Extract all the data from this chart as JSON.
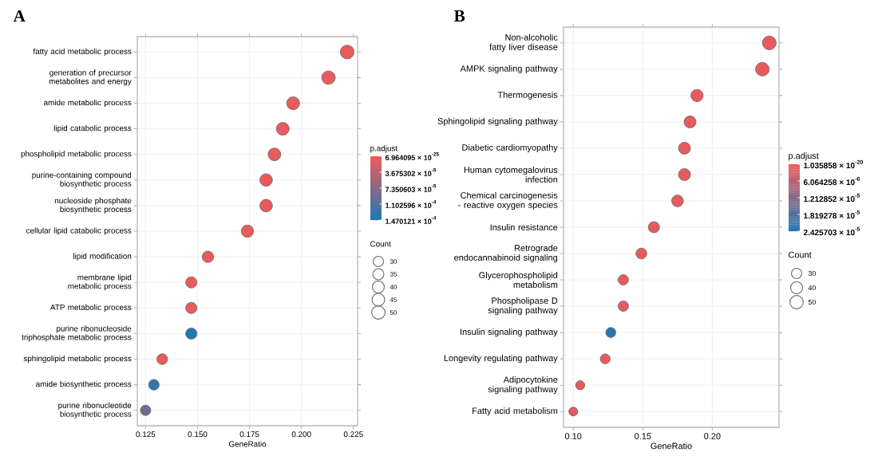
{
  "chart_data": [
    {
      "type": "bubble",
      "title": "A",
      "xlabel": "GeneRatio",
      "orientation": "horizontal",
      "grid": true,
      "categories": [
        "fatty acid metabolic process",
        "generation of precursor metabolites and energy",
        "amide metabolic process",
        "lipid catabolic process",
        "phospholipid metabolic process",
        "purine-containing compound biosynthetic process",
        "nucleoside phosphate biosynthetic process",
        "cellular lipid catabolic process",
        "lipid modification",
        "membrane lipid metabolic process",
        "ATP metabolic process",
        "purine ribonucleoside triphosphate metabolic process",
        "sphingolipid metabolic process",
        "amide biosynthetic process",
        "purine ribonucleotide biosynthetic process"
      ],
      "values": [
        0.222,
        0.213,
        0.196,
        0.191,
        0.187,
        0.183,
        0.183,
        0.174,
        0.155,
        0.147,
        0.147,
        0.147,
        0.133,
        0.129,
        0.125
      ],
      "sizes": [
        53,
        51,
        47,
        46,
        45,
        44,
        44,
        42,
        37,
        35,
        35,
        35,
        32,
        31,
        30
      ],
      "size_legend": [
        30,
        35,
        40,
        45,
        50
      ],
      "cvalues": [
        5e-06,
        5e-06,
        5e-06,
        5e-06,
        5e-06,
        5e-06,
        5e-06,
        5e-06,
        5e-06,
        5e-06,
        5e-06,
        0.000145,
        5e-06,
        0.000135,
        9e-05
      ],
      "clabel": "p.adjust",
      "legend_title": "Count",
      "clim": [
        6.964095e-25,
        0.0001470121
      ],
      "cticks": [
        {
          "value": 6.964095e-25,
          "label": "6.964095 × 10$^{-25}$"
        },
        {
          "value": 3.675302e-05,
          "label": "3.675302 × 10$^{-5}$"
        },
        {
          "value": 7.350603e-05,
          "label": "7.350603 × 10$^{-5}$"
        },
        {
          "value": 0.0001102596,
          "label": "1.102596 × 10$^{-4}$"
        },
        {
          "value": 0.0001470121,
          "label": "1.470121 × 10$^{-4}$"
        }
      ],
      "xlim": [
        0.121,
        0.227
      ],
      "xticks": [
        0.125,
        {
          "value": 0.15,
          "label": "0.150"
        },
        0.175,
        {
          "value": 0.2,
          "label": "0.200"
        },
        0.225
      ]
    },
    {
      "type": "bubble",
      "title": "B",
      "xlabel": "GeneRatio",
      "orientation": "horizontal",
      "grid": true,
      "categories": [
        "Non-alcoholic fatty liver disease",
        "AMPK signaling pathway",
        "Thermogenesis",
        "Sphingolipid signaling pathway",
        "Diabetic cardiomyopathy",
        "Human cytomegalovirus infection",
        "Chemical carcinogenesis - reactive oxygen species",
        "Insulin resistance",
        "Retrograde endocannabinoid signaling",
        "Glycerophospholipid metabolism",
        "Phospholipase D signaling pathway",
        "Insulin signaling pathway",
        "Longevity regulating pathway",
        "Adipocytokine signaling pathway",
        "Fatty acid metabolism"
      ],
      "values": [
        0.241,
        0.236,
        0.189,
        0.184,
        0.18,
        0.18,
        0.175,
        0.158,
        0.149,
        0.136,
        0.136,
        0.127,
        0.123,
        0.105,
        0.1
      ],
      "sizes": [
        53,
        52,
        42,
        40,
        40,
        40,
        38,
        35,
        33,
        30,
        30,
        28,
        27,
        23,
        22
      ],
      "size_legend": [
        30,
        40,
        50
      ],
      "cvalues": [
        1e-06,
        1e-06,
        1e-06,
        1e-06,
        1e-06,
        1e-06,
        1e-06,
        1e-06,
        1e-06,
        1e-06,
        1e-06,
        2.3e-05,
        1e-06,
        1e-06,
        1e-06
      ],
      "clabel": "p.adjust",
      "legend_title": "Count",
      "clim": [
        1.035858e-20,
        2.425703e-05
      ],
      "cticks": [
        {
          "value": 1.035858e-20,
          "label": "1.035858 × 10$^{-20}$"
        },
        {
          "value": 6.064258e-06,
          "label": "6.064258 × 10$^{-6}$"
        },
        {
          "value": 1.212852e-05,
          "label": "1.212852 × 10$^{-5}$"
        },
        {
          "value": 1.819278e-05,
          "label": "1.819278 × 10$^{-5}$"
        },
        {
          "value": 2.425703e-05,
          "label": "2.425703 × 10$^{-5}$"
        }
      ],
      "xlim": [
        0.093,
        0.248
      ],
      "xticks": [
        {
          "value": 0.1,
          "label": "0.10"
        },
        {
          "value": 0.15,
          "label": "0.15"
        },
        {
          "value": 0.2,
          "label": "0.20"
        }
      ]
    }
  ]
}
